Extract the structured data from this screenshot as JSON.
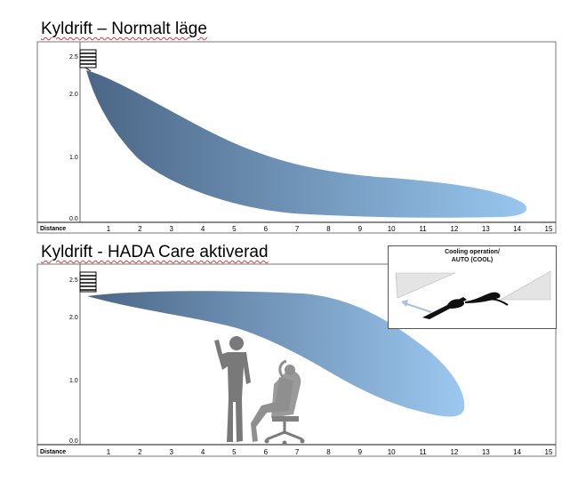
{
  "panels": [
    {
      "title": "Kyldrift – Normalt läge",
      "y_ticks": [
        "2.5",
        "2.0",
        "1.0",
        "0.0"
      ],
      "x_label": "Distance",
      "x_ticks": [
        "1",
        "2",
        "3",
        "4",
        "5",
        "6",
        "7",
        "8",
        "9",
        "10",
        "11",
        "12",
        "13",
        "14",
        "15"
      ]
    },
    {
      "title": "Kyldrift - HADA Care aktiverad",
      "y_ticks": [
        "2.5",
        "2.0",
        "1.0",
        "0.0"
      ],
      "x_label": "Distance",
      "x_ticks": [
        "1",
        "2",
        "3",
        "4",
        "5",
        "6",
        "7",
        "8",
        "9",
        "10",
        "11",
        "12",
        "13",
        "14",
        "15"
      ],
      "inset": {
        "line1": "Cooling operation/",
        "line2": "AUTO (COOL)"
      }
    }
  ],
  "colors": {
    "airflow_dark": "#4a6788",
    "airflow_light": "#93c0e8",
    "person": "#6e6e6e",
    "frame": "#555555"
  },
  "icons": [
    "air-conditioner-icon",
    "standing-person-icon",
    "seated-person-icon",
    "louver-icon"
  ]
}
